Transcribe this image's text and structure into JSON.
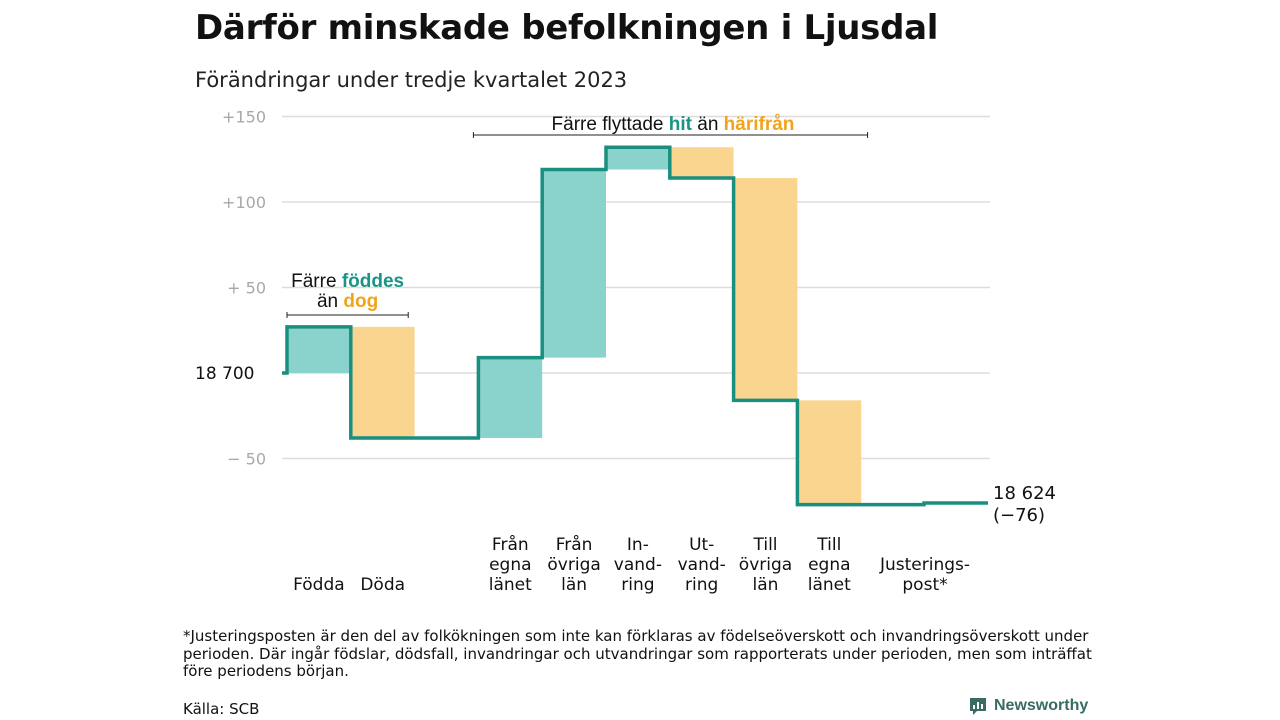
{
  "title": "Därför minskade befolkningen i Ljusdal",
  "subtitle": "Förändringar under tredje kvartalet 2023",
  "chart_data": {
    "type": "waterfall",
    "baseline_value": 18700,
    "baseline_label": "18  700",
    "y_tick_values": [
      150,
      100,
      50,
      -50
    ],
    "y_tick_labels": [
      "+150",
      "+100",
      "+  50",
      "−  50"
    ],
    "ylim": [
      -88,
      152
    ],
    "x_slots": 11,
    "steps": [
      {
        "label": [
          "Födda"
        ],
        "slot": 0,
        "start": 0,
        "end": 27,
        "kind": "increase"
      },
      {
        "label": [
          "Döda"
        ],
        "slot": 1,
        "start": 27,
        "end": -38,
        "kind": "decrease"
      },
      {
        "label": [],
        "slot": 2,
        "start": -38,
        "end": -38,
        "kind": "flat"
      },
      {
        "label": [
          "Från",
          "egna",
          "länet"
        ],
        "slot": 3,
        "start": -38,
        "end": 9,
        "kind": "increase"
      },
      {
        "label": [
          "Från",
          "övriga",
          "län"
        ],
        "slot": 4,
        "start": 9,
        "end": 119,
        "kind": "increase"
      },
      {
        "label": [
          "In-",
          "vand-",
          "ring"
        ],
        "slot": 5,
        "start": 119,
        "end": 132,
        "kind": "increase"
      },
      {
        "label": [
          "Ut-",
          "vand-",
          "ring"
        ],
        "slot": 6,
        "start": 132,
        "end": 114,
        "kind": "decrease"
      },
      {
        "label": [
          "Till",
          "övriga",
          "län"
        ],
        "slot": 7,
        "start": 114,
        "end": -16,
        "kind": "decrease"
      },
      {
        "label": [
          "Till",
          "egna",
          "länet"
        ],
        "slot": 8,
        "start": -16,
        "end": -77,
        "kind": "decrease"
      },
      {
        "label": [
          "Justerings-",
          "post*"
        ],
        "slot": 9.5,
        "start": -77,
        "end": -76,
        "kind": "adjustment"
      }
    ],
    "end_value_label": "18 624",
    "end_change_label": "(−76)",
    "annotations": [
      {
        "id": "births",
        "line1": "Färre ",
        "line1_hl": "föddes",
        "line2": "än ",
        "line2_hl": "dog",
        "slot_from": 0,
        "slot_to": 1.9
      },
      {
        "id": "migration",
        "line1": "Färre flyttade ",
        "line1_hl": "hit",
        "line1_mid": " än ",
        "line1_hl2": "härifrån",
        "slot_from": 3,
        "slot_to": 9.1
      }
    ],
    "colors": {
      "increase": "#8ad3cc",
      "decrease": "#fad58f",
      "line": "#1a8f80",
      "highlight_increase": "#1a9585",
      "highlight_decrease": "#f1a31c",
      "grid": "#dddddd",
      "tick": "#a8a8a8"
    }
  },
  "footnote": "*Justeringsposten är den del av folkökningen som inte kan förklaras av födelseöverskott och invandringsöverskott under perioden. Där ingår födslar, dödsfall, invandringar och utvandringar som rapporterats under perioden, men som inträffat före periodens början.",
  "source": "Källa: SCB",
  "brand": "Newsworthy"
}
